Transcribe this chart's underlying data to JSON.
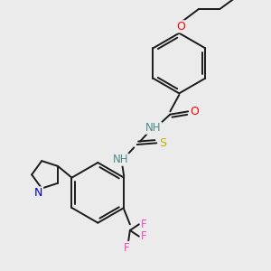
{
  "bg_color": "#ebebeb",
  "bond_color": "#1a1a1a",
  "atom_colors": {
    "O": "#ff0000",
    "N": "#0000cc",
    "S": "#ccaa00",
    "F": "#ff44bb",
    "H": "#4a8a8a",
    "C": "#1a1a1a"
  },
  "font_size": 8.5,
  "figsize": [
    3.0,
    3.0
  ],
  "dpi": 100
}
